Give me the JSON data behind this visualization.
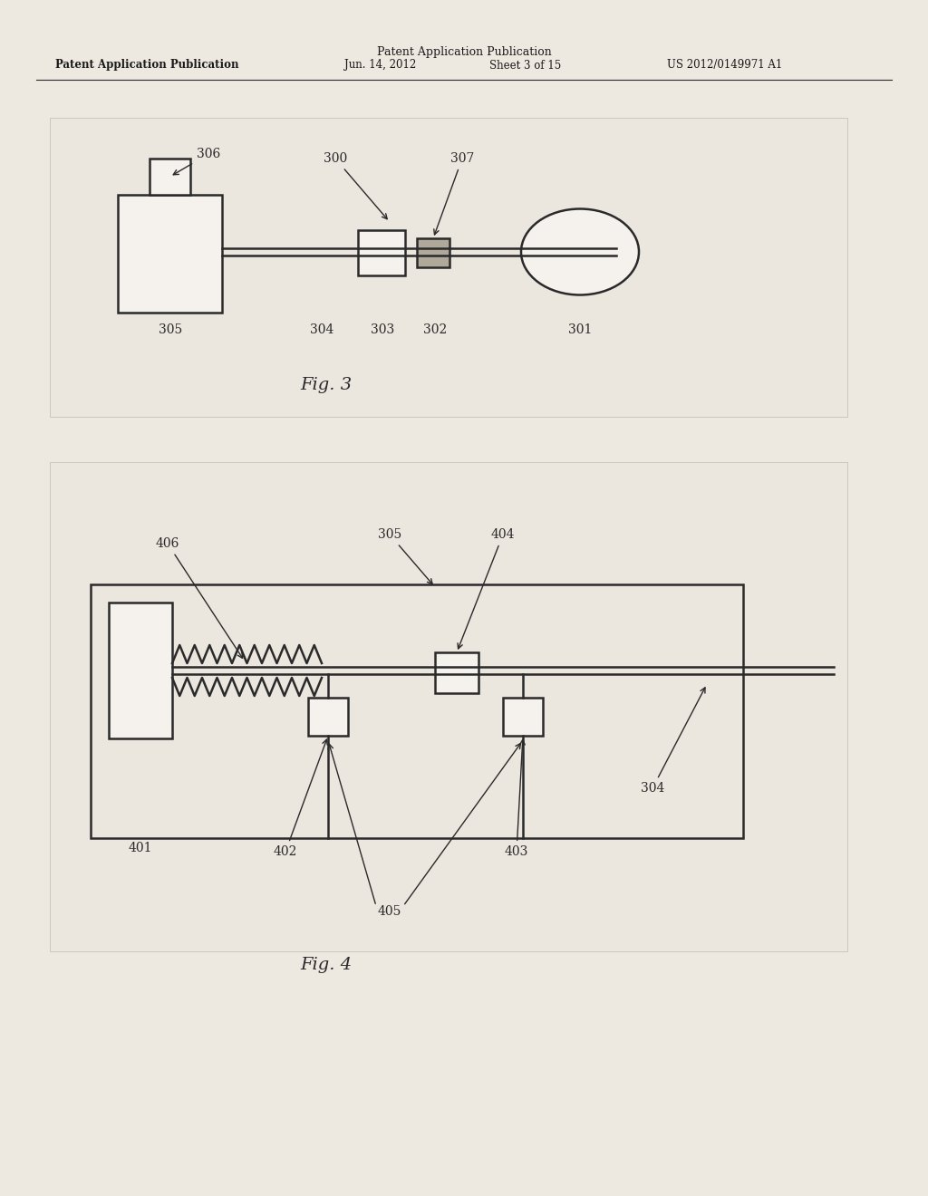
{
  "bg_color": "#ede8e0",
  "panel_bg": "#e8e3db",
  "line_color": "#2a2a2a",
  "gray_fill": "#b0a898",
  "white_fill": "#f5f2ed",
  "header_line1": "Patent Application Publication",
  "header_line2": "Jun. 14, 2012",
  "header_line3": "Sheet 3 of 15",
  "header_line4": "US 2012/0149971 A1",
  "fig3_label": "Fig. 3",
  "fig4_label": "Fig. 4"
}
